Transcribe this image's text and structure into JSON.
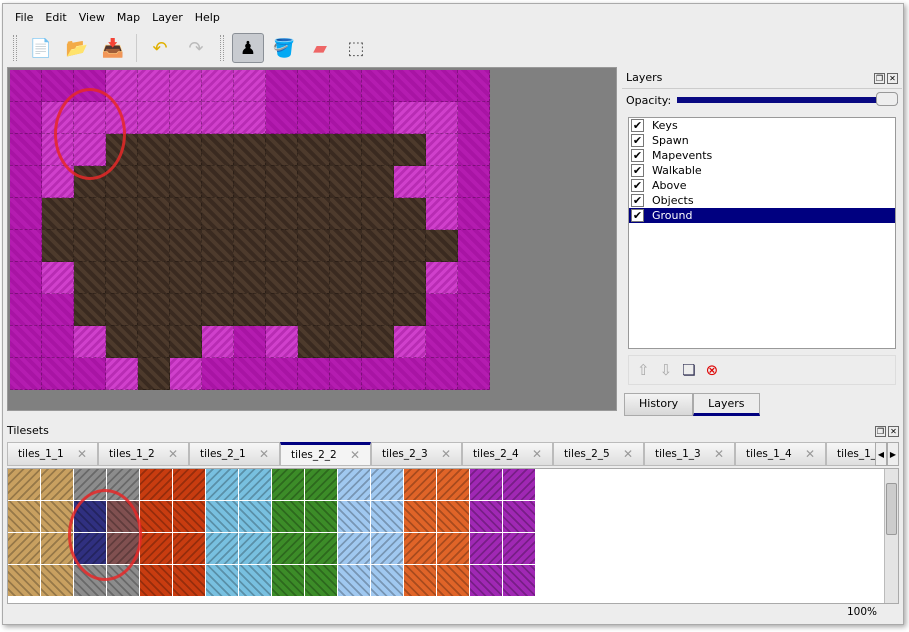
{
  "menu": [
    "File",
    "Edit",
    "View",
    "Map",
    "Layer",
    "Help"
  ],
  "toolbar": [
    {
      "icon": "new-file-icon",
      "glyph": "📄"
    },
    {
      "icon": "open-folder-icon",
      "glyph": "📂"
    },
    {
      "icon": "save-icon",
      "glyph": "📥"
    },
    {
      "icon": "undo-icon",
      "glyph": "↶"
    },
    {
      "icon": "redo-icon",
      "glyph": "↷"
    },
    {
      "icon": "stamp-brush-icon",
      "glyph": "♟",
      "active": true
    },
    {
      "icon": "bucket-fill-icon",
      "glyph": "🪣"
    },
    {
      "icon": "eraser-icon",
      "glyph": "▰"
    },
    {
      "icon": "rect-select-icon",
      "glyph": "⬚"
    }
  ],
  "map": {
    "rows": [
      "mmmpppppmmmmmmm",
      "mpppppppmmmmppm",
      "mppddddddddddpm",
      "mpddddddddddppm",
      "mddddddddddddpm",
      "mdddddddddddddm",
      "mpdddddddddddpm",
      "mmdddddddddddmm",
      "mmpdddpmpdddpmm",
      "mmmpdpmmmmmmmmm"
    ]
  },
  "layers_panel": {
    "title": "Layers",
    "opacity_label": "Opacity:",
    "opacity": 1.0,
    "items": [
      {
        "name": "Keys",
        "visible": true
      },
      {
        "name": "Spawn",
        "visible": true
      },
      {
        "name": "Mapevents",
        "visible": true
      },
      {
        "name": "Walkable",
        "visible": true
      },
      {
        "name": "Above",
        "visible": true
      },
      {
        "name": "Objects",
        "visible": true
      },
      {
        "name": "Ground",
        "visible": true,
        "selected": true
      }
    ],
    "tabs": [
      "History",
      "Layers"
    ],
    "active_tab": "Layers"
  },
  "tilesets": {
    "title": "Tilesets",
    "tabs": [
      "tiles_1_1",
      "tiles_1_2",
      "tiles_2_1",
      "tiles_2_2",
      "tiles_2_3",
      "tiles_2_4",
      "tiles_2_5",
      "tiles_1_3",
      "tiles_1_4",
      "tiles_1_"
    ],
    "active_tab": "tiles_2_2",
    "column_colors": [
      "#c8a060",
      "#c8a060",
      "#8c8c8c",
      "#8c8c8c",
      "#c83c10",
      "#c83c10",
      "#78c0e0",
      "#78c0e0",
      "#3c8c28",
      "#3c8c28",
      "#a0c8f0",
      "#a0c8f0",
      "#e06428",
      "#e06428",
      "#a028b4",
      "#a028b4"
    ]
  },
  "status": {
    "zoom": "100%"
  }
}
